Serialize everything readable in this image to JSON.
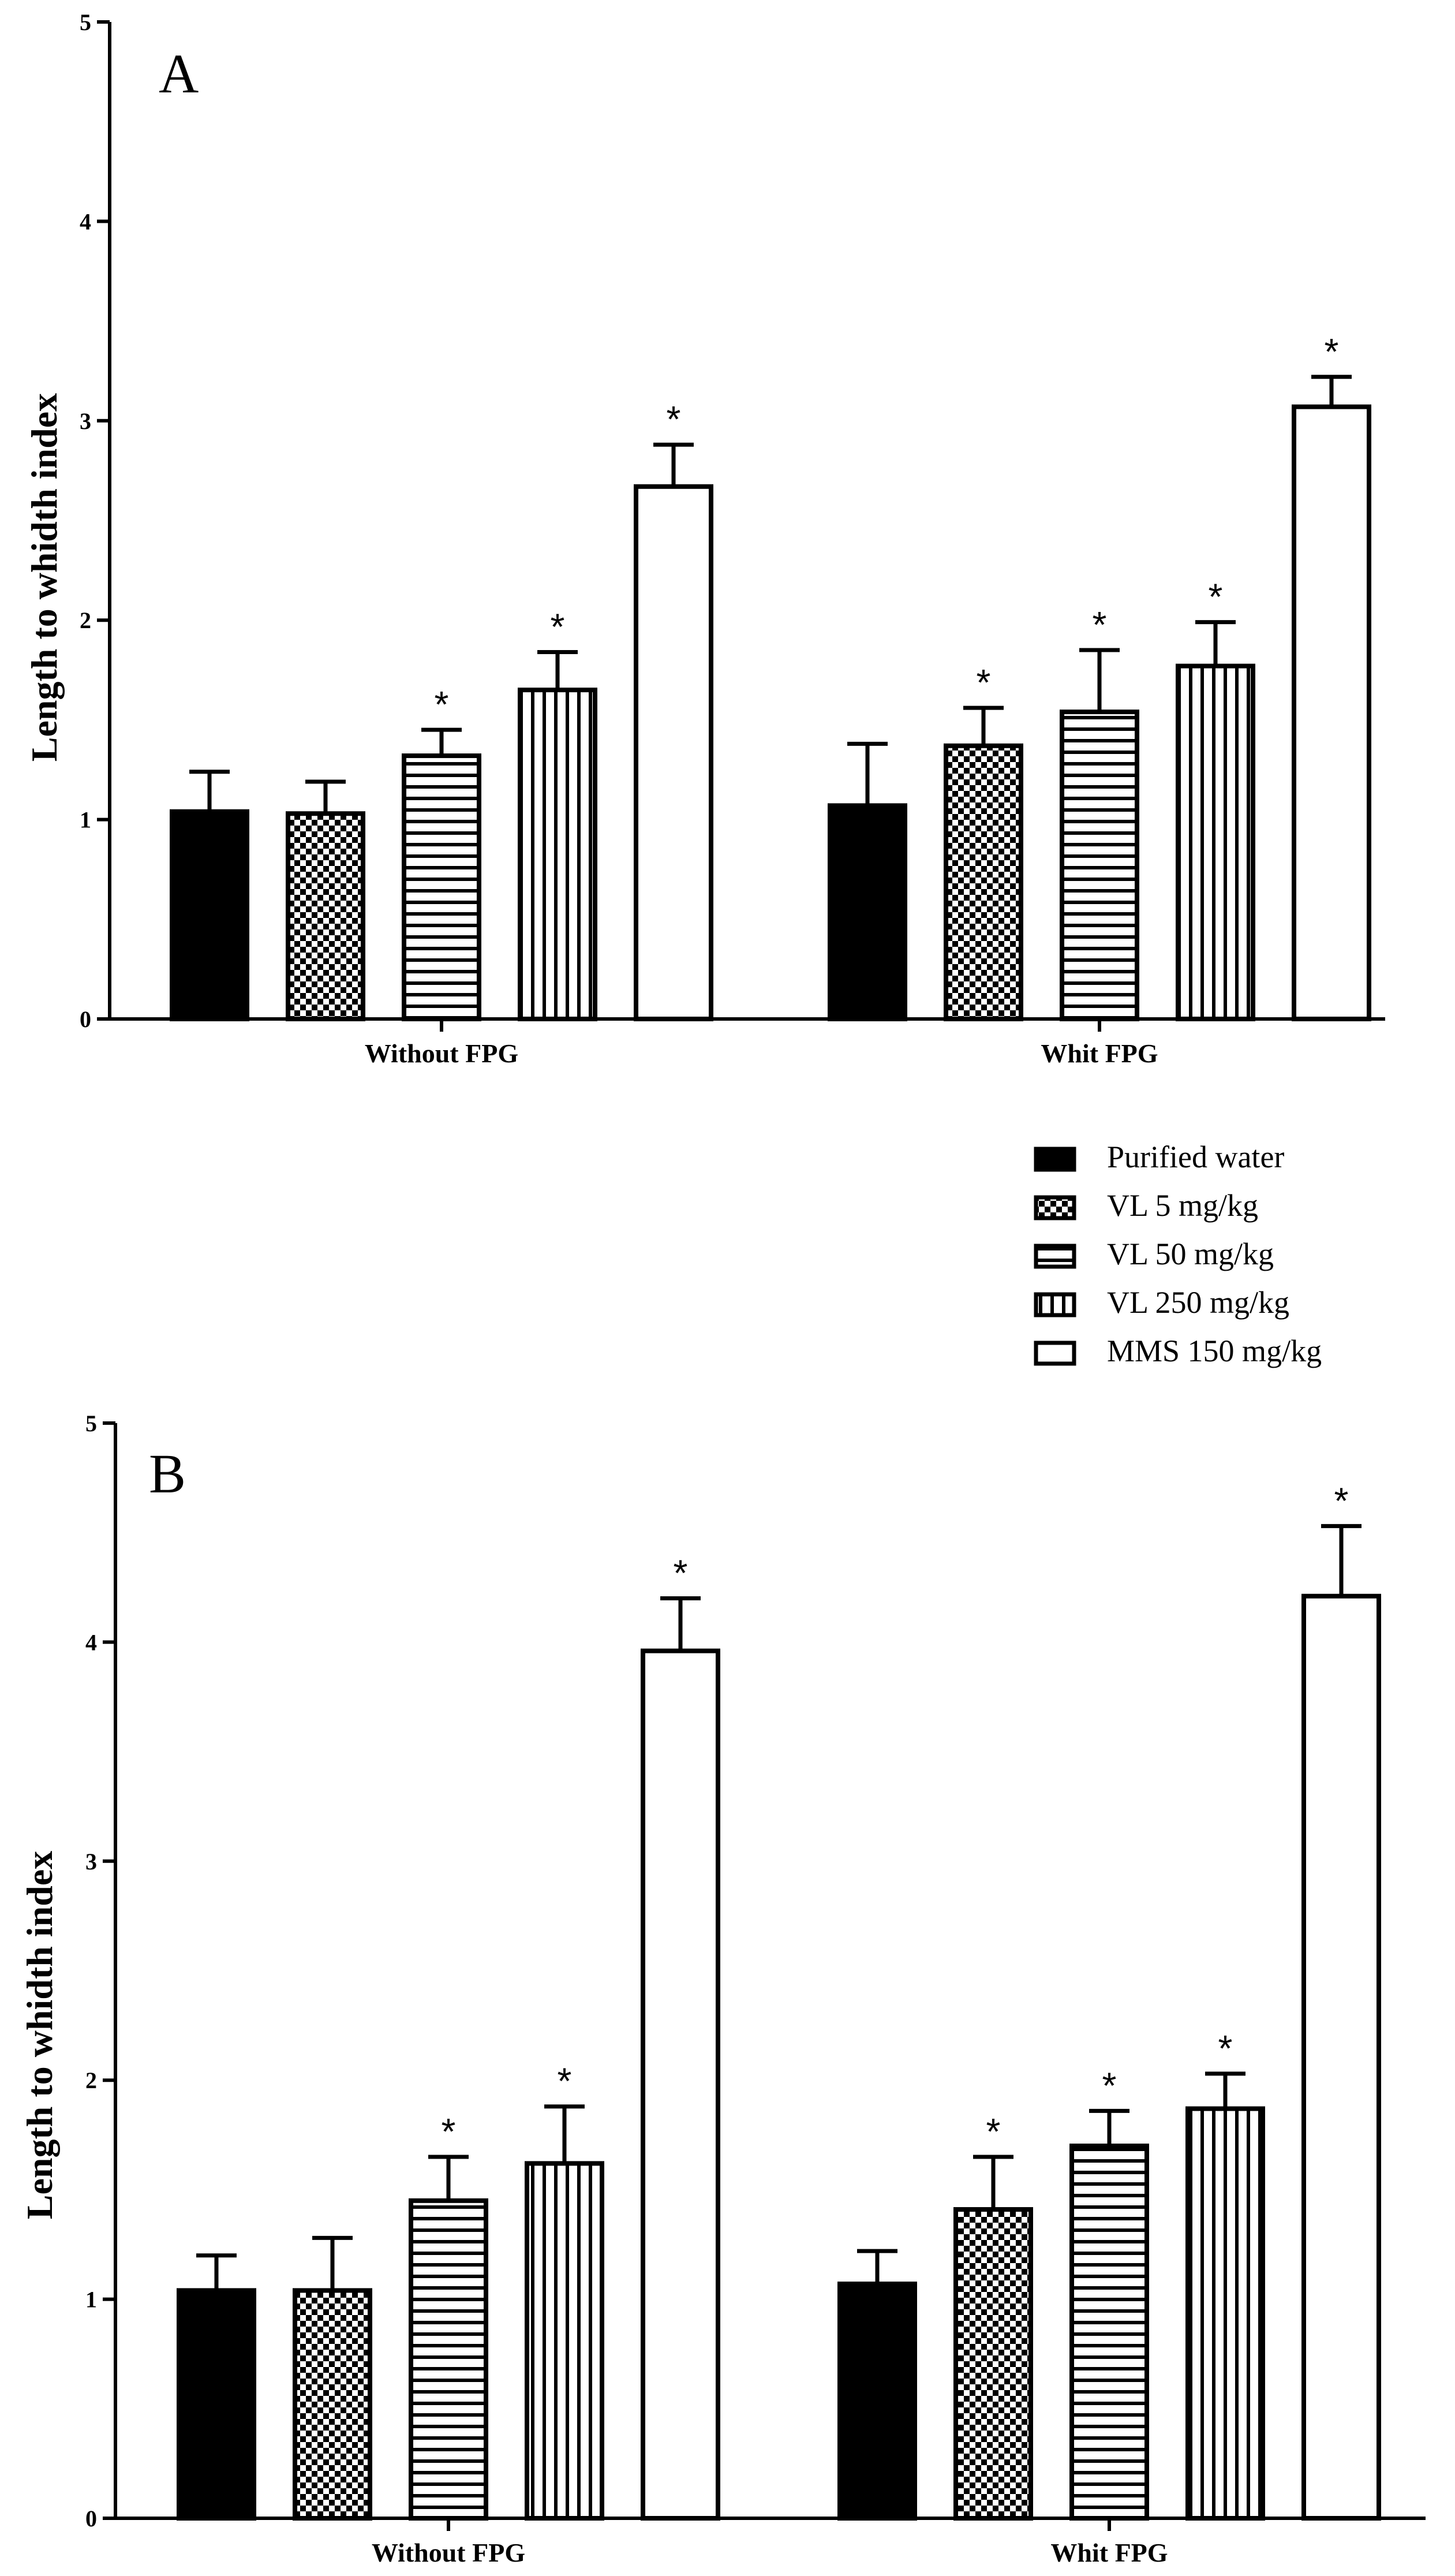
{
  "chart_data": [
    {
      "type": "bar",
      "panel_label": "A",
      "ylabel": "Length to whidth index",
      "ylim": [
        0,
        5
      ],
      "yticks": [
        "0",
        "1",
        "2",
        "3",
        "4",
        "5"
      ],
      "categories": [
        "Without FPG",
        "Whit FPG"
      ],
      "series": [
        {
          "name": "Purified water",
          "pattern": "solid",
          "values": [
            1.04,
            1.07
          ],
          "errors": [
            0.2,
            0.31
          ],
          "significant": [
            false,
            false
          ]
        },
        {
          "name": "VL 5 mg/kg",
          "pattern": "checker",
          "values": [
            1.03,
            1.37
          ],
          "errors": [
            0.16,
            0.19
          ],
          "significant": [
            false,
            true
          ]
        },
        {
          "name": "VL 50 mg/kg",
          "pattern": "horizontal",
          "values": [
            1.32,
            1.54
          ],
          "errors": [
            0.13,
            0.31
          ],
          "significant": [
            true,
            true
          ]
        },
        {
          "name": "VL 250 mg/kg",
          "pattern": "vertical",
          "values": [
            1.65,
            1.77
          ],
          "errors": [
            0.19,
            0.22
          ],
          "significant": [
            true,
            true
          ]
        },
        {
          "name": "MMS 150 mg/kg",
          "pattern": "empty",
          "values": [
            2.67,
            3.07
          ],
          "errors": [
            0.21,
            0.15
          ],
          "significant": [
            true,
            true
          ]
        }
      ],
      "sig_marker": "*"
    },
    {
      "type": "bar",
      "panel_label": "B",
      "ylabel": "Length to whidth index",
      "ylim": [
        0,
        5
      ],
      "yticks": [
        "0",
        "1",
        "2",
        "3",
        "4",
        "5"
      ],
      "categories": [
        "Without FPG",
        "Whit FPG"
      ],
      "series": [
        {
          "name": "Purified water",
          "pattern": "solid",
          "values": [
            1.04,
            1.07
          ],
          "errors": [
            0.16,
            0.15
          ],
          "significant": [
            false,
            false
          ]
        },
        {
          "name": "VL 5 mg/kg",
          "pattern": "checker",
          "values": [
            1.04,
            1.41
          ],
          "errors": [
            0.24,
            0.24
          ],
          "significant": [
            false,
            true
          ]
        },
        {
          "name": "VL 50 mg/kg",
          "pattern": "horizontal",
          "values": [
            1.45,
            1.7
          ],
          "errors": [
            0.2,
            0.16
          ],
          "significant": [
            true,
            true
          ]
        },
        {
          "name": "VL 250 mg/kg",
          "pattern": "vertical",
          "values": [
            1.62,
            1.87
          ],
          "errors": [
            0.26,
            0.16
          ],
          "significant": [
            true,
            true
          ]
        },
        {
          "name": "MMS 150 mg/kg",
          "pattern": "empty",
          "values": [
            3.96,
            4.21
          ],
          "errors": [
            0.24,
            0.32
          ],
          "significant": [
            true,
            true
          ]
        }
      ],
      "sig_marker": "*"
    }
  ],
  "legend": {
    "placement": "between-panels-right",
    "items": [
      {
        "label": "Purified water",
        "pattern": "solid"
      },
      {
        "label": "VL 5 mg/kg",
        "pattern": "checker"
      },
      {
        "label": "VL 50 mg/kg",
        "pattern": "horizontal"
      },
      {
        "label": "VL 250 mg/kg",
        "pattern": "vertical"
      },
      {
        "label": "MMS 150 mg/kg",
        "pattern": "empty"
      }
    ]
  },
  "colors": {
    "ink": "#000000",
    "fill": "#ffffff"
  }
}
